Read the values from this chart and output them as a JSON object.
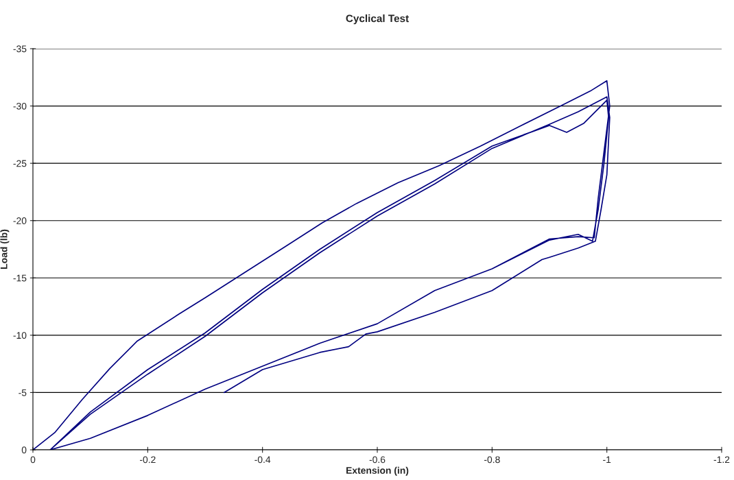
{
  "chart_data": {
    "type": "line",
    "title": "Cyclical Test",
    "xlabel": "Extension (in)",
    "ylabel": "Load (lb)",
    "xlim": [
      0,
      -1.2
    ],
    "ylim": [
      0,
      -35
    ],
    "xticks": [
      0,
      -0.2,
      -0.4,
      -0.6,
      -0.8,
      -1,
      -1.2
    ],
    "yticks": [
      0,
      -5,
      -10,
      -15,
      -20,
      -25,
      -30,
      -35
    ],
    "grid": "y",
    "series": [
      {
        "color": "#000080",
        "x": [
          0,
          -0.038,
          -0.086,
          -0.134,
          -0.182,
          -0.253,
          -0.301,
          -0.373,
          -0.445,
          -0.504,
          -0.564,
          -0.636,
          -0.708,
          -0.78,
          -0.851,
          -0.923,
          -0.971,
          -1.0,
          -1.005,
          -0.995,
          -0.985,
          -0.978,
          -0.95,
          -0.9,
          -0.8,
          -0.7,
          -0.6,
          -0.5,
          -0.4,
          -0.3,
          -0.2,
          -0.1,
          -0.03,
          -0.1,
          -0.2,
          -0.3,
          -0.4,
          -0.5,
          -0.6,
          -0.7,
          -0.8,
          -0.9,
          -0.93,
          -0.96,
          -1.0,
          -1.003,
          -0.995,
          -0.985,
          -0.975,
          -0.95,
          -0.9,
          -0.8,
          -0.7,
          -0.6,
          -0.5,
          -0.4,
          -0.3,
          -0.2,
          -0.1,
          -0.03,
          -0.1,
          -0.2,
          -0.3,
          -0.4,
          -0.5,
          -0.6,
          -0.7,
          -0.8,
          -0.9,
          -0.95,
          -1.0,
          -1.005,
          -1.0,
          -0.99,
          -0.98,
          -0.95,
          -0.9,
          -0.887,
          -0.8,
          -0.7,
          -0.6,
          -0.58,
          -0.55,
          -0.5,
          -0.4,
          -0.333
        ],
        "values": [
          0,
          -1.5,
          -4.4,
          -7.1,
          -9.5,
          -11.8,
          -13.3,
          -15.6,
          -17.9,
          -19.8,
          -21.5,
          -23.3,
          -24.8,
          -26.5,
          -28.3,
          -30.1,
          -31.3,
          -32.2,
          -30,
          -26,
          -22,
          -18.5,
          -18.6,
          -18.4,
          -15.8,
          -13.9,
          -11,
          -9.3,
          -7.3,
          -5.3,
          -3,
          -1,
          0,
          -3.3,
          -7,
          -10.2,
          -14,
          -17.5,
          -20.7,
          -23.5,
          -26.5,
          -28.3,
          -27.7,
          -28.5,
          -30.5,
          -29,
          -25,
          -21,
          -18.2,
          -18.8,
          -18.3,
          -15.8,
          -13.9,
          -11,
          -9.3,
          -7.3,
          -5.3,
          -3,
          -1,
          0,
          -3.1,
          -6.6,
          -9.9,
          -13.7,
          -17.2,
          -20.4,
          -23.2,
          -26.3,
          -28.4,
          -29.5,
          -30.8,
          -29,
          -24,
          -21,
          -18.2,
          -17.6,
          -16.8,
          -16.6,
          -13.9,
          -12,
          -10.3,
          -10.1,
          -9,
          -8.5,
          -7,
          -5
        ]
      }
    ]
  }
}
